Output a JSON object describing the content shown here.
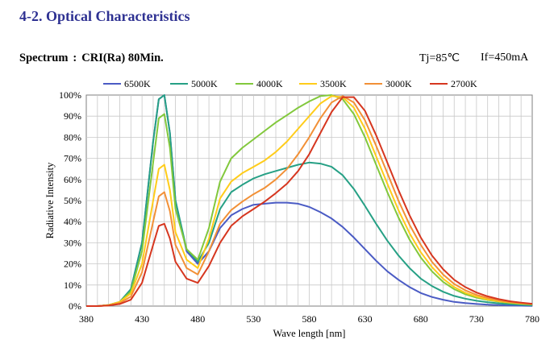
{
  "header": {
    "section_title": "4-2. Optical Characteristics",
    "spectrum_label": "Spectrum",
    "spectrum_sep": ":",
    "spectrum_value": "CRI(Ra) 80Min.",
    "condition_tj": "Tj=85℃",
    "condition_if": "If=450mA"
  },
  "chart_data": {
    "type": "line",
    "xlabel": "Wave length [nm]",
    "ylabel": "Radiative Intensity",
    "xlim": [
      380,
      780
    ],
    "ylim": [
      0,
      100
    ],
    "xticks": [
      380,
      430,
      480,
      530,
      580,
      630,
      680,
      730,
      780
    ],
    "yticks": [
      0,
      10,
      20,
      30,
      40,
      50,
      60,
      70,
      80,
      90,
      100
    ],
    "ytick_suffix": "%",
    "grid": true,
    "legend": "top",
    "x": [
      380,
      390,
      400,
      410,
      420,
      430,
      440,
      445,
      450,
      455,
      460,
      470,
      480,
      490,
      500,
      510,
      520,
      530,
      540,
      550,
      560,
      570,
      580,
      590,
      600,
      610,
      620,
      630,
      640,
      650,
      660,
      670,
      680,
      690,
      700,
      710,
      720,
      730,
      740,
      750,
      760,
      770,
      780
    ],
    "series": [
      {
        "name": "6500K",
        "color": "#4a5bc4",
        "values": [
          0,
          0,
          0.5,
          2,
          8,
          30,
          78,
          98,
          100,
          82,
          50,
          26,
          20,
          26,
          37,
          43,
          46,
          48,
          48.5,
          49,
          49,
          48.5,
          47,
          44.5,
          41.5,
          37.5,
          32.5,
          27,
          21.5,
          16.5,
          12.5,
          9,
          6.2,
          4.3,
          3,
          2,
          1.4,
          1,
          0.7,
          0.5,
          0.3,
          0.2,
          0.1
        ]
      },
      {
        "name": "5000K",
        "color": "#26a085",
        "values": [
          0,
          0,
          0.5,
          2,
          8,
          30,
          78,
          98,
          100,
          82,
          50,
          27,
          21,
          30,
          46,
          54,
          57.5,
          60.5,
          62.5,
          64,
          65.5,
          67,
          68,
          67.5,
          66,
          62,
          55.5,
          47.5,
          39,
          31,
          24,
          18,
          13,
          9.5,
          6.8,
          4.8,
          3.5,
          2.5,
          1.8,
          1.3,
          0.9,
          0.6,
          0.4
        ]
      },
      {
        "name": "4000K",
        "color": "#82c83c",
        "values": [
          0,
          0,
          0.5,
          2,
          7,
          26,
          68,
          89,
          91,
          75,
          46,
          27,
          22,
          37,
          59,
          70,
          75,
          79,
          83,
          87,
          90.5,
          94,
          97,
          99.5,
          100,
          98,
          91,
          80,
          67,
          54,
          42,
          31.5,
          23,
          16.5,
          11.5,
          8,
          5.6,
          4,
          2.9,
          2.1,
          1.5,
          1.1,
          0.8
        ]
      },
      {
        "name": "3500K",
        "color": "#ffcc1a",
        "values": [
          0,
          0,
          0.5,
          2,
          6,
          20,
          50,
          65,
          67,
          55,
          35,
          22,
          18,
          32,
          51,
          59,
          63,
          66,
          69,
          73,
          78,
          84,
          90,
          96,
          99.5,
          99,
          94,
          84,
          71,
          58,
          45.5,
          34.5,
          25.5,
          18.5,
          13,
          9,
          6.3,
          4.5,
          3.2,
          2.3,
          1.7,
          1.2,
          0.9
        ]
      },
      {
        "name": "3000K",
        "color": "#f29036",
        "values": [
          0,
          0,
          0.3,
          1.5,
          4.5,
          16,
          40,
          52,
          54,
          45,
          29,
          18,
          15,
          26,
          39,
          45.5,
          49.5,
          53,
          56,
          60,
          65,
          72,
          80,
          89,
          96.5,
          99.5,
          96.5,
          88,
          76,
          63,
          50,
          38.5,
          29,
          21,
          15,
          10.5,
          7.5,
          5.3,
          3.8,
          2.7,
          1.9,
          1.4,
          1
        ]
      },
      {
        "name": "2700K",
        "color": "#d6361f",
        "values": [
          0,
          0,
          0.3,
          1,
          3,
          11,
          29,
          38,
          39,
          32,
          21,
          13,
          11,
          19,
          30,
          38,
          42.5,
          46,
          49.5,
          53.5,
          58,
          64,
          72,
          82,
          92,
          99,
          99,
          92.5,
          81,
          68,
          55,
          43,
          32.5,
          24,
          17.5,
          12.5,
          9,
          6.4,
          4.6,
          3.3,
          2.3,
          1.6,
          1.1
        ]
      }
    ]
  }
}
